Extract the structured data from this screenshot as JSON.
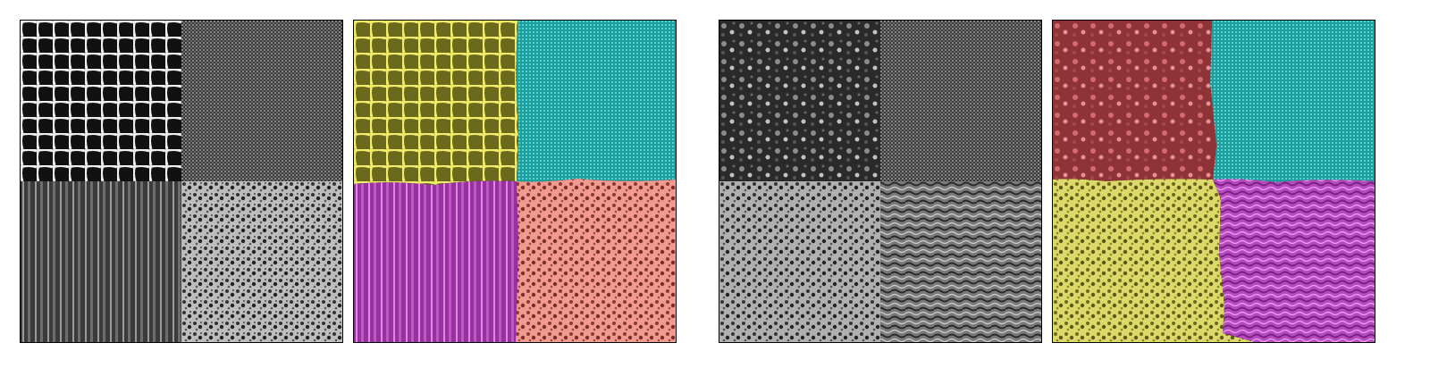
{
  "figure": {
    "panels": [
      {
        "role": "texture-mosaic-1",
        "type": "grayscale"
      },
      {
        "role": "segmentation-1",
        "type": "overlay",
        "regions": {
          "top_left": "#e6e04a",
          "top_right": "#2fbdbd",
          "bottom_left": "#c03cc8",
          "bottom_right": "#e8877a"
        }
      },
      {
        "role": "texture-mosaic-2",
        "type": "grayscale"
      },
      {
        "role": "segmentation-2",
        "type": "overlay",
        "regions": {
          "top_left": "#b8454a",
          "top_right": "#2fbdbd",
          "bottom_left": "#e6e04a",
          "bottom_right": "#c03cc8"
        }
      }
    ]
  }
}
